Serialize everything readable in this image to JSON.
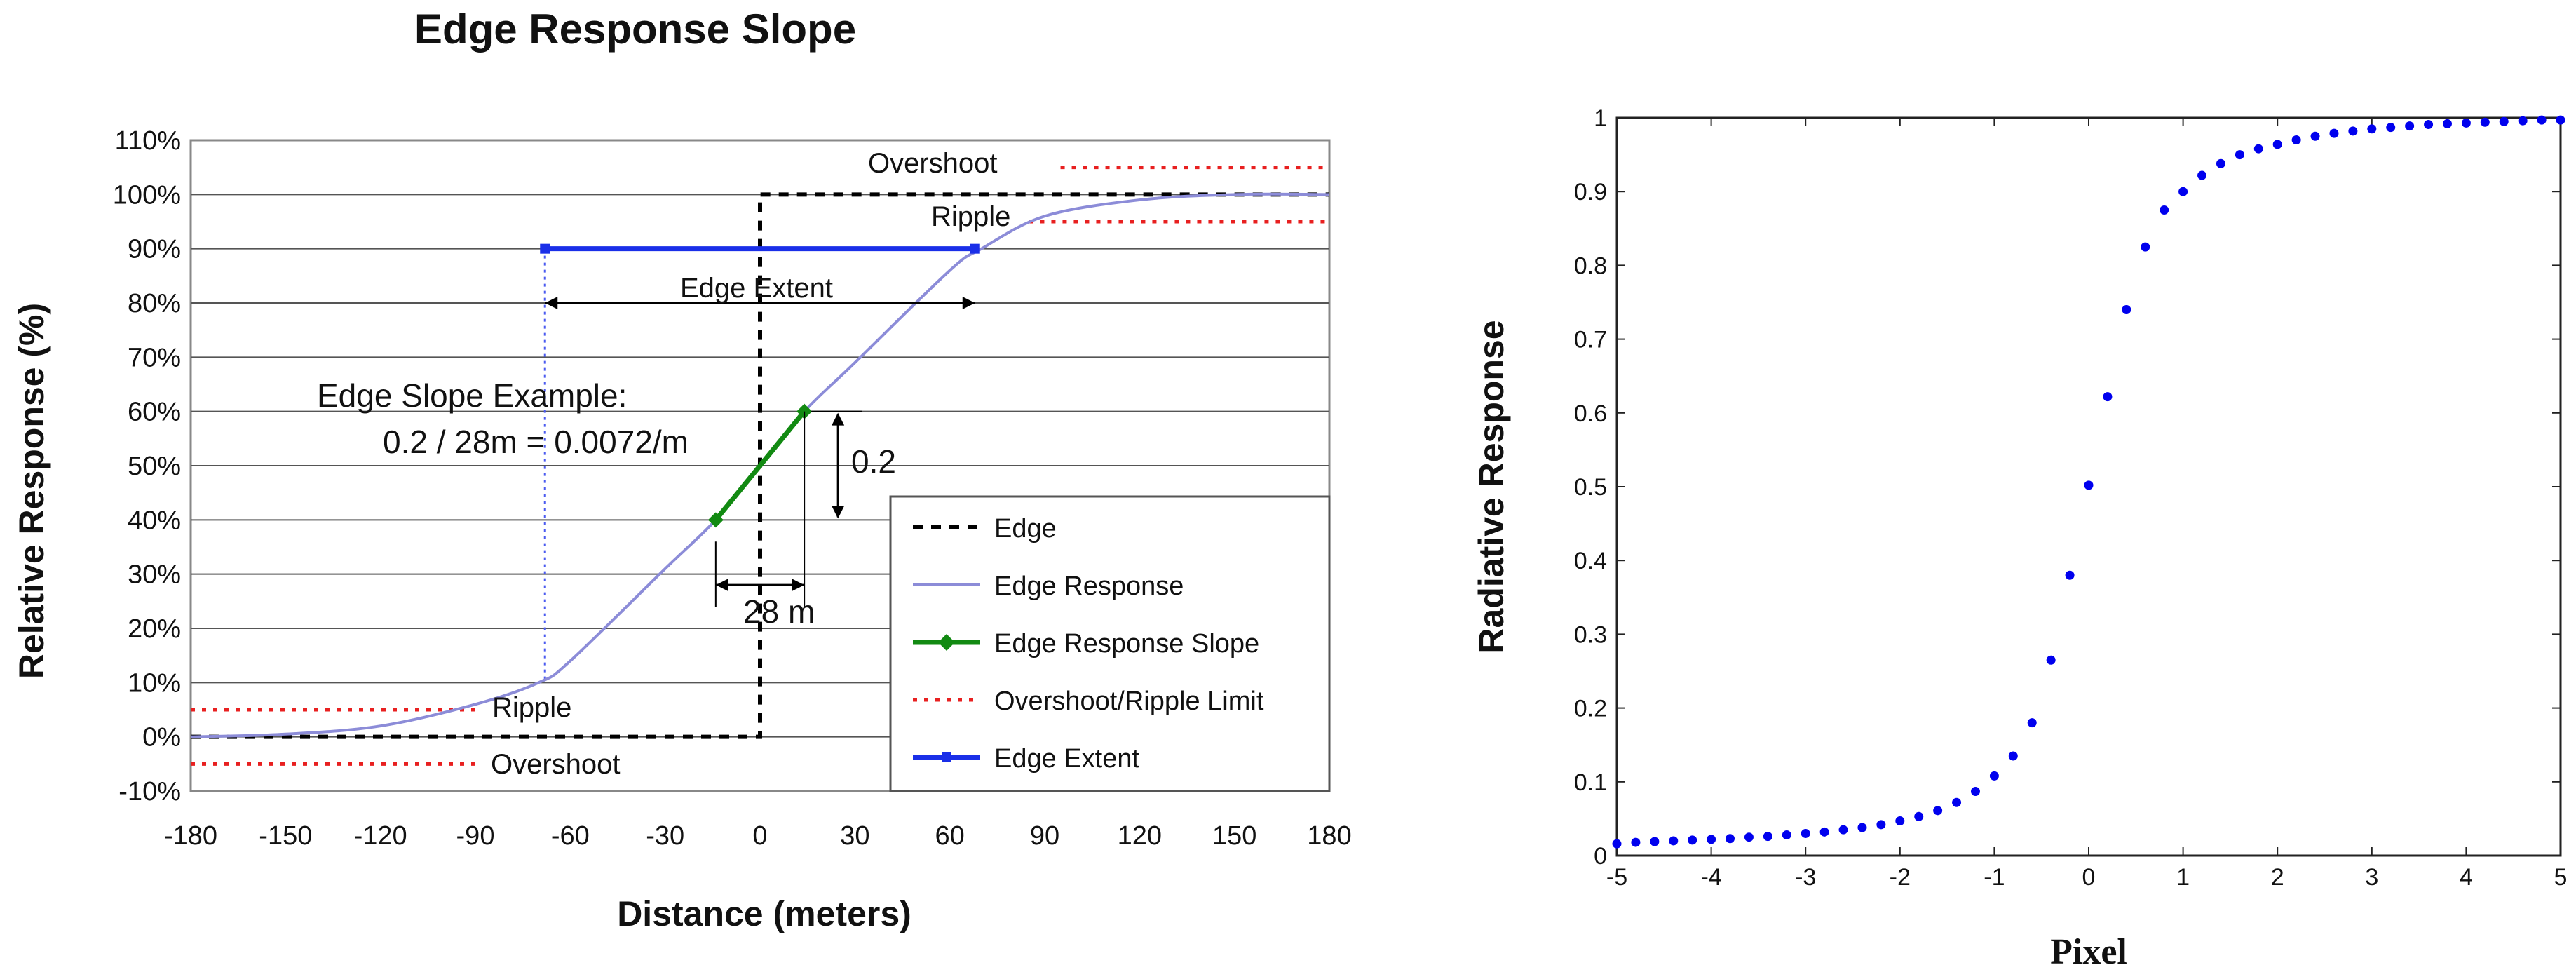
{
  "chart_data": [
    {
      "type": "line",
      "title": "Edge Response Slope",
      "xlabel": "Distance (meters)",
      "ylabel": "Relative Response (%)",
      "xlim": [
        -180,
        180
      ],
      "ylim": [
        -10,
        110
      ],
      "x_ticks": [
        -180,
        -150,
        -120,
        -90,
        -60,
        -30,
        0,
        30,
        60,
        90,
        120,
        150,
        180
      ],
      "y_ticks": [
        -10,
        0,
        10,
        20,
        30,
        40,
        50,
        60,
        70,
        80,
        90,
        100,
        110
      ],
      "x_tick_labels": [
        "-180",
        "-150",
        "-120",
        "-90",
        "-60",
        "-30",
        "0",
        "30",
        "60",
        "90",
        "120",
        "150",
        "180"
      ],
      "y_tick_labels": [
        "-10%",
        "0%",
        "10%",
        "20%",
        "30%",
        "40%",
        "50%",
        "60%",
        "70%",
        "80%",
        "90%",
        "100%",
        "110%"
      ],
      "grid": "horizontal",
      "series": [
        {
          "name": "Edge",
          "style": "black dashed",
          "x": [
            -180,
            0,
            0,
            180
          ],
          "y": [
            0,
            0,
            100,
            100
          ]
        },
        {
          "name": "Edge Response",
          "style": "light purple solid",
          "x": [
            -180,
            -150,
            -120,
            -90,
            -70,
            -60,
            -30,
            -14,
            0,
            14,
            30,
            60,
            70,
            90,
            120,
            150,
            180
          ],
          "y": [
            0,
            0.5,
            2,
            6,
            10,
            14,
            31,
            40,
            50,
            60,
            69,
            86,
            90,
            96,
            99,
            100,
            100
          ]
        },
        {
          "name": "Edge Response Slope",
          "style": "green solid with diamond markers",
          "x": [
            -14,
            14
          ],
          "y": [
            40,
            60
          ]
        },
        {
          "name": "Overshoot/Ripple Limit",
          "style": "red dotted",
          "segments": [
            {
              "x": [
                -180,
                -90
              ],
              "y": 5
            },
            {
              "x": [
                -180,
                -90
              ],
              "y": -5
            },
            {
              "x": [
                95,
                180
              ],
              "y": 105
            },
            {
              "x": [
                85,
                180
              ],
              "y": 95
            }
          ]
        },
        {
          "name": "Edge Extent",
          "style": "blue solid with square markers",
          "x": [
            -68,
            68
          ],
          "y": [
            90,
            90
          ]
        }
      ],
      "legend": {
        "placement": "bottom-right",
        "entries": [
          "Edge",
          "Edge Response",
          "Edge Response Slope",
          "Overshoot/Ripple Limit",
          "Edge Extent"
        ]
      },
      "annotations": {
        "overshoot_top": "Overshoot",
        "ripple_top": "Ripple",
        "edge_extent": "Edge Extent",
        "slope_example_1": "Edge Slope Example:",
        "slope_example_2": "0.2 / 28m = 0.0072/m",
        "rise": "0.2",
        "run": "28 m",
        "ripple_bottom": "Ripple",
        "overshoot_bottom": "Overshoot"
      }
    },
    {
      "type": "scatter",
      "title": "",
      "xlabel": "Pixel",
      "ylabel": "Radiative Response",
      "xlim": [
        -5,
        5
      ],
      "ylim": [
        0,
        1
      ],
      "x_ticks": [
        -5,
        -4,
        -3,
        -2,
        -1,
        0,
        1,
        2,
        3,
        4,
        5
      ],
      "y_ticks": [
        0,
        0.1,
        0.2,
        0.3,
        0.4,
        0.5,
        0.6,
        0.7,
        0.8,
        0.9,
        1
      ],
      "x_tick_labels": [
        "-5",
        "-4",
        "-3",
        "-2",
        "-1",
        "0",
        "1",
        "2",
        "3",
        "4",
        "5"
      ],
      "y_tick_labels": [
        "0",
        "0.1",
        "0.2",
        "0.3",
        "0.4",
        "0.5",
        "0.6",
        "0.7",
        "0.8",
        "0.9",
        "1"
      ],
      "grid": "none",
      "series": [
        {
          "name": "Radiative Response",
          "color": "#0000ee",
          "x": [
            -5,
            -4.8,
            -4.6,
            -4.4,
            -4.2,
            -4,
            -3.8,
            -3.6,
            -3.4,
            -3.2,
            -3,
            -2.8,
            -2.6,
            -2.4,
            -2.2,
            -2,
            -1.8,
            -1.6,
            -1.4,
            -1.2,
            -1,
            -0.8,
            -0.6,
            -0.4,
            -0.2,
            0,
            0.2,
            0.4,
            0.6,
            0.8,
            1,
            1.2,
            1.4,
            1.6,
            1.8,
            2,
            2.2,
            2.4,
            2.6,
            2.8,
            3,
            3.2,
            3.4,
            3.6,
            3.8,
            4,
            4.2,
            4.4,
            4.6,
            4.8,
            5
          ],
          "y": [
            0.016,
            0.018,
            0.019,
            0.02,
            0.021,
            0.022,
            0.023,
            0.025,
            0.026,
            0.028,
            0.03,
            0.032,
            0.035,
            0.038,
            0.042,
            0.047,
            0.053,
            0.061,
            0.072,
            0.087,
            0.108,
            0.135,
            0.18,
            0.265,
            0.38,
            0.502,
            0.622,
            0.74,
            0.825,
            0.875,
            0.9,
            0.922,
            0.938,
            0.95,
            0.958,
            0.964,
            0.97,
            0.975,
            0.979,
            0.982,
            0.985,
            0.987,
            0.989,
            0.991,
            0.992,
            0.993,
            0.994,
            0.995,
            0.996,
            0.997,
            0.997
          ]
        }
      ]
    }
  ]
}
